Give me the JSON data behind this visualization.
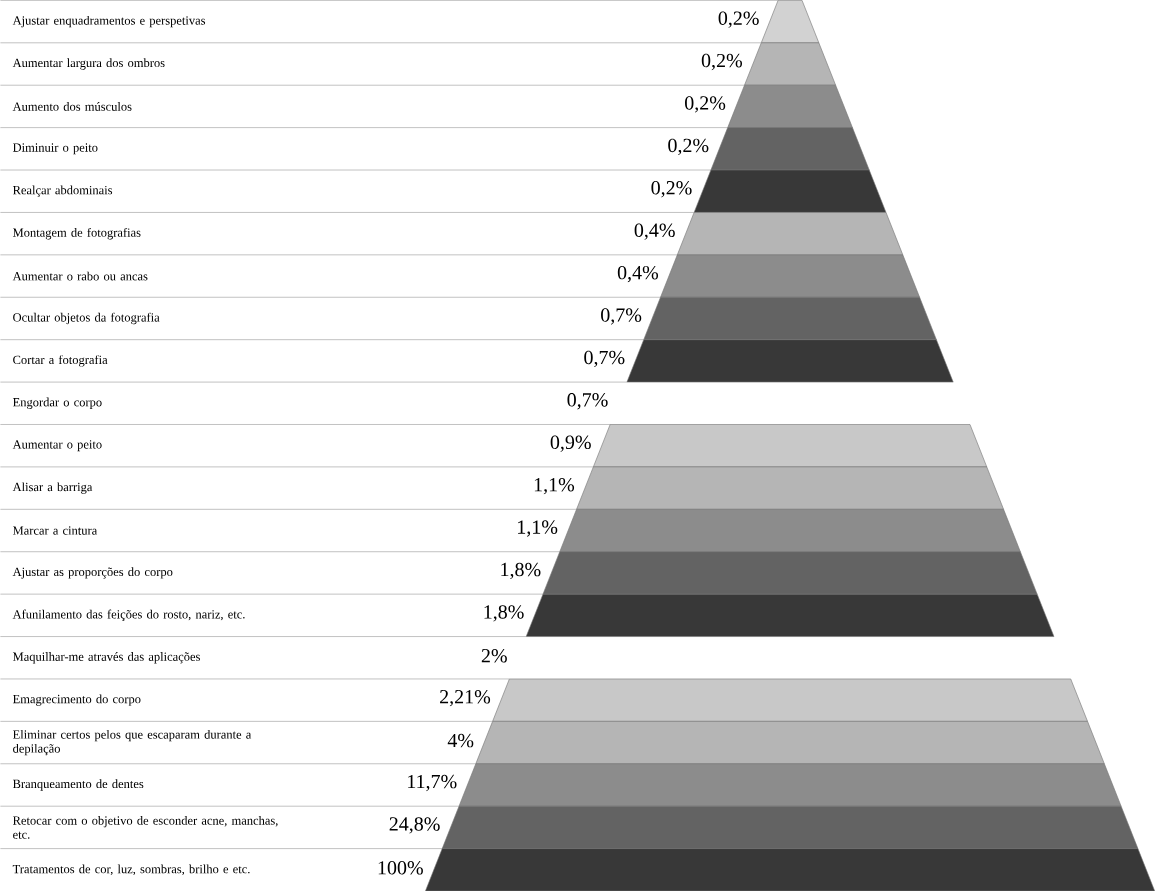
{
  "chart_data": {
    "type": "other",
    "categories": [
      "Ajustar enquadramentos e perspetivas",
      "Aumentar largura dos ombros",
      "Aumento dos músculos",
      "Diminuir o peito",
      "Realçar abdominais",
      "Montagem de fotografias",
      "Aumentar o rabo ou ancas",
      "Ocultar objetos da fotografia",
      "Cortar a fotografia",
      "Engordar o corpo",
      "Aumentar o peito",
      "Alisar a barriga",
      "Marcar a cintura",
      "Ajustar as proporções do corpo",
      "Afunilamento das feições do rosto, nariz, etc.",
      "Maquilhar-me através das aplicações",
      "Emagrecimento do corpo",
      "Eliminar certos pelos que escaparam durante a depilação",
      "Branqueamento de dentes",
      "Retocar com o objetivo de esconder acne, manchas, etc.",
      "Tratamentos de cor, luz, sombras, brilho e etc."
    ],
    "values": [
      0.2,
      0.2,
      0.2,
      0.2,
      0.2,
      0.4,
      0.4,
      0.7,
      0.7,
      0.7,
      0.9,
      1.1,
      1.1,
      1.8,
      1.8,
      2,
      2.21,
      4,
      11.7,
      24.8,
      100
    ],
    "value_labels": [
      "0,2%",
      "0,2%",
      "0,2%",
      "0,2%",
      "0,2%",
      "0,4%",
      "0,4%",
      "0,7%",
      "0,7%",
      "0,7%",
      "0,9%",
      "1,1%",
      "1,1%",
      "1,8%",
      "1,8%",
      "2%",
      "2,21%",
      "4%",
      "11,7%",
      "24,8%",
      "100%"
    ],
    "colors": [
      "#d2d2d2",
      "#b5b5b5",
      "#8c8c8c",
      "#636363",
      "#383838",
      "#b5b5b5",
      "#8c8c8c",
      "#636363",
      "#383838",
      null,
      "#c8c8c8",
      "#b5b5b5",
      "#8c8c8c",
      "#636363",
      "#383838",
      null,
      "#c8c8c8",
      "#b5b5b5",
      "#8c8c8c",
      "#636363",
      "#383838"
    ]
  }
}
